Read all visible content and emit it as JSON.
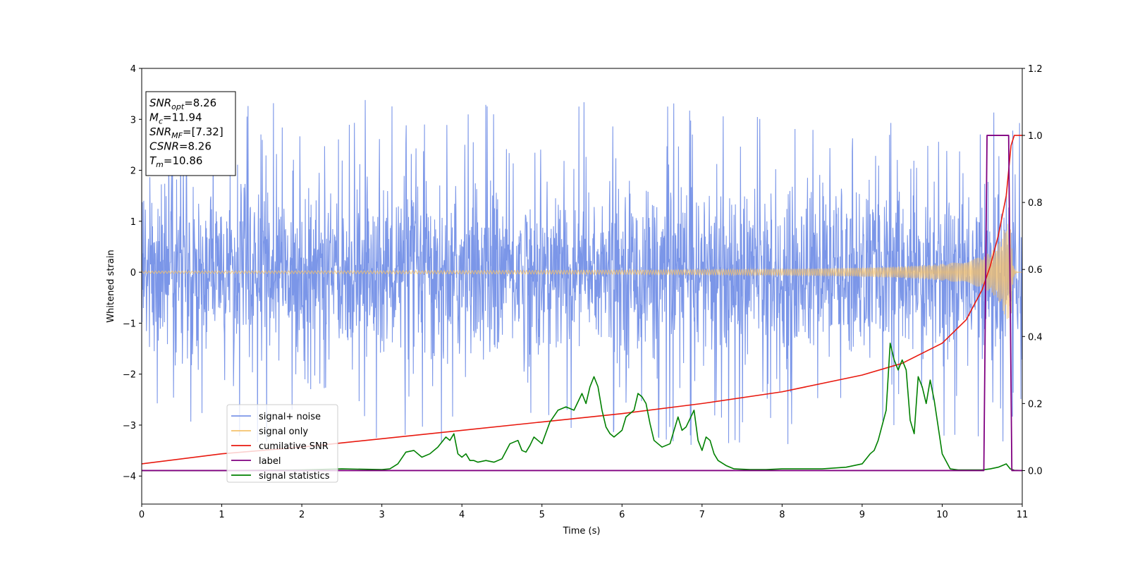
{
  "chart_data": {
    "type": "line",
    "xlabel": "Time (s)",
    "ylabel": "Whitened strain",
    "xlim": [
      0,
      11
    ],
    "ylim_left": [
      -4.55,
      4
    ],
    "ylim_right": [
      -0.1,
      1.2
    ],
    "x_ticks": [
      0,
      1,
      2,
      3,
      4,
      5,
      6,
      7,
      8,
      9,
      10,
      11
    ],
    "y_ticks_left": [
      4,
      3,
      2,
      1,
      0,
      -1,
      -2,
      -3,
      -4
    ],
    "y_tick_labels_left": [
      "4",
      "3",
      "2",
      "1",
      "0",
      "−1",
      "−2",
      "−3",
      "−4"
    ],
    "y_ticks_right": [
      1.2,
      1.0,
      0.8,
      0.6,
      0.4,
      0.2,
      0.0
    ],
    "y_tick_labels_right": [
      "1.2",
      "1.0",
      "0.8",
      "0.6",
      "0.4",
      "0.2",
      "0.0"
    ],
    "grid": false,
    "legend_position": "lower-left",
    "info_box": {
      "lines": [
        {
          "base": "SNR",
          "sub": "opt",
          "value": "=8.26"
        },
        {
          "base": "M",
          "sub": "c",
          "value": "=11.94"
        },
        {
          "base": "SNR",
          "sub": "MF",
          "value": "=[7.32]"
        },
        {
          "base": "CSNR",
          "sub": "",
          "value": "=8.26"
        },
        {
          "base": "T",
          "sub": "m",
          "value": "=10.86"
        }
      ]
    },
    "series": [
      {
        "name": "signal+ noise",
        "color": "#7b96e8",
        "axis": "left",
        "description": "whitened noisy strain, envelope roughly ±2.5 with spikes to 3.6 / -4.2"
      },
      {
        "name": "signal only",
        "color": "#f5c26b",
        "axis": "left",
        "description": "chirp waveform, amplitude growing from ~0.02 to ~0.95 near t=10.86 then dropping to 0"
      },
      {
        "name": "cumilative SNR",
        "color": "#e8190f",
        "axis": "right",
        "x": [
          0,
          1,
          2,
          3,
          4,
          5,
          6,
          7,
          8,
          9,
          9.5,
          10,
          10.3,
          10.5,
          10.6,
          10.7,
          10.8,
          10.86,
          10.9,
          11
        ],
        "y": [
          0.02,
          0.05,
          0.07,
          0.095,
          0.12,
          0.145,
          0.17,
          0.2,
          0.235,
          0.285,
          0.32,
          0.38,
          0.45,
          0.54,
          0.61,
          0.7,
          0.82,
          0.97,
          1.0,
          1.0
        ]
      },
      {
        "name": "label",
        "color": "#800080",
        "axis": "right",
        "x": [
          0,
          10.52,
          10.56,
          10.83,
          10.87,
          11
        ],
        "y": [
          0.0,
          0.0,
          1.0,
          1.0,
          0.0,
          0.0
        ]
      },
      {
        "name": "signal statistics",
        "color": "#008000",
        "axis": "right",
        "x": [
          0,
          1,
          2,
          2.5,
          3,
          3.1,
          3.2,
          3.3,
          3.4,
          3.5,
          3.6,
          3.7,
          3.8,
          3.85,
          3.9,
          3.95,
          4.0,
          4.05,
          4.1,
          4.15,
          4.2,
          4.3,
          4.4,
          4.5,
          4.6,
          4.7,
          4.75,
          4.8,
          4.85,
          4.9,
          4.95,
          5.0,
          5.1,
          5.2,
          5.3,
          5.4,
          5.5,
          5.55,
          5.6,
          5.65,
          5.7,
          5.75,
          5.8,
          5.85,
          5.9,
          6.0,
          6.05,
          6.1,
          6.15,
          6.2,
          6.25,
          6.3,
          6.35,
          6.4,
          6.5,
          6.55,
          6.6,
          6.7,
          6.75,
          6.8,
          6.9,
          6.95,
          7.0,
          7.05,
          7.1,
          7.15,
          7.2,
          7.3,
          7.4,
          7.5,
          7.6,
          7.8,
          8.0,
          8.5,
          8.8,
          9.0,
          9.1,
          9.15,
          9.2,
          9.3,
          9.35,
          9.4,
          9.45,
          9.5,
          9.55,
          9.6,
          9.65,
          9.7,
          9.75,
          9.8,
          9.85,
          9.9,
          9.95,
          10.0,
          10.1,
          10.2,
          10.5,
          10.6,
          10.7,
          10.8,
          10.85,
          10.9,
          11
        ],
        "y": [
          0.0,
          0.0,
          0.002,
          0.005,
          0.003,
          0.005,
          0.02,
          0.055,
          0.06,
          0.04,
          0.05,
          0.07,
          0.1,
          0.09,
          0.11,
          0.05,
          0.04,
          0.05,
          0.03,
          0.03,
          0.025,
          0.03,
          0.025,
          0.035,
          0.08,
          0.09,
          0.06,
          0.055,
          0.075,
          0.1,
          0.09,
          0.08,
          0.145,
          0.18,
          0.19,
          0.18,
          0.23,
          0.2,
          0.25,
          0.28,
          0.25,
          0.18,
          0.13,
          0.11,
          0.1,
          0.12,
          0.16,
          0.17,
          0.18,
          0.23,
          0.22,
          0.2,
          0.14,
          0.09,
          0.07,
          0.075,
          0.08,
          0.16,
          0.12,
          0.13,
          0.18,
          0.09,
          0.06,
          0.1,
          0.09,
          0.05,
          0.03,
          0.015,
          0.005,
          0.004,
          0.003,
          0.003,
          0.005,
          0.005,
          0.01,
          0.02,
          0.05,
          0.06,
          0.09,
          0.18,
          0.38,
          0.33,
          0.3,
          0.33,
          0.3,
          0.15,
          0.11,
          0.28,
          0.25,
          0.2,
          0.27,
          0.21,
          0.13,
          0.05,
          0.005,
          0.002,
          0.002,
          0.005,
          0.01,
          0.02,
          0.005,
          0.001,
          0.0
        ]
      }
    ]
  }
}
